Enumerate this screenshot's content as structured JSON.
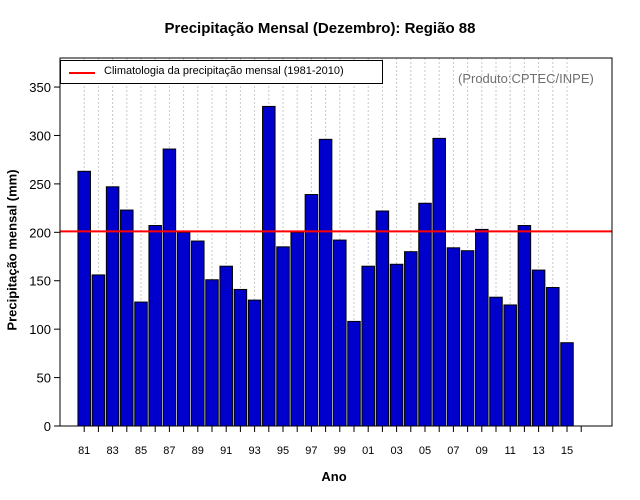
{
  "chart_data": {
    "type": "bar",
    "title": "Precipitação Mensal (Dezembro): Região 88",
    "xlabel": "Ano",
    "ylabel": "Precipitação mensal (mm)",
    "credit": "(Produto:CPTEC/INPE)",
    "legend_label": "Climatologia da precipitação mensal (1981-2010)",
    "legend_position": "top-left",
    "climatology": 201,
    "ylim": [
      0,
      380
    ],
    "yticks": [
      0,
      50,
      100,
      150,
      200,
      250,
      300,
      350
    ],
    "grid": "vertical-dotted",
    "categories": [
      "81",
      "82",
      "83",
      "84",
      "85",
      "86",
      "87",
      "88",
      "89",
      "90",
      "91",
      "92",
      "93",
      "94",
      "95",
      "96",
      "97",
      "98",
      "99",
      "00",
      "01",
      "02",
      "03",
      "04",
      "05",
      "06",
      "07",
      "08",
      "09",
      "10",
      "11",
      "12",
      "13",
      "14",
      "15"
    ],
    "tick_labels": [
      "81",
      "83",
      "85",
      "87",
      "89",
      "91",
      "93",
      "95",
      "97",
      "99",
      "01",
      "03",
      "05",
      "07",
      "09",
      "11",
      "13",
      "15"
    ],
    "values": [
      263,
      156,
      247,
      223,
      128,
      207,
      286,
      200,
      191,
      151,
      165,
      141,
      130,
      330,
      185,
      200,
      239,
      296,
      192,
      108,
      165,
      222,
      167,
      180,
      230,
      297,
      184,
      181,
      203,
      133,
      125,
      207,
      161,
      143,
      86
    ],
    "colors": {
      "bar": "#0000cc",
      "bar_edge": "#000000",
      "climatology_line": "#ff0000",
      "grid": "#c8c8c8"
    }
  }
}
